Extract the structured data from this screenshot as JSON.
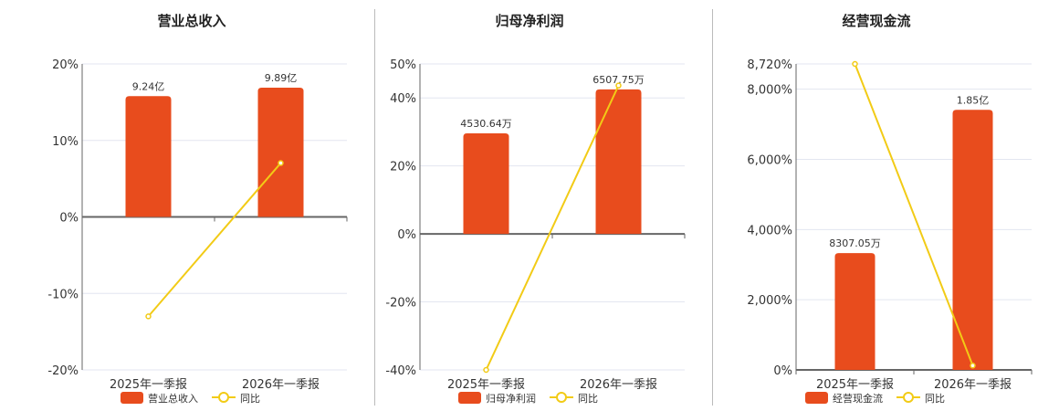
{
  "colors": {
    "bar": "#E84C1D",
    "line": "#F2CB16",
    "grid": "#e3e6f0",
    "axis": "#666"
  },
  "chart_data": [
    {
      "type": "bar+line",
      "title": "营业总收入",
      "categories": [
        "2025年一季报",
        "2026年一季报"
      ],
      "bar_series": {
        "name": "营业总收入",
        "values": [
          9.24,
          9.89
        ],
        "unit": "亿",
        "labels": [
          "9.24亿",
          "9.89亿"
        ]
      },
      "line_series": {
        "name": "同比",
        "values": [
          -13.0,
          7.04
        ],
        "unit": "%"
      },
      "ylim": [
        -20,
        20
      ],
      "yticks": [
        20,
        10,
        0,
        -10,
        -20
      ],
      "ytick_labels": [
        "20%",
        "10%",
        "0%",
        "-10%",
        "-20%"
      ],
      "grid": true,
      "legend": "bottom"
    },
    {
      "type": "bar+line",
      "title": "归母净利润",
      "categories": [
        "2025年一季报",
        "2026年一季报"
      ],
      "bar_series": {
        "name": "归母净利润",
        "values": [
          4530.64,
          6507.75
        ],
        "unit": "万",
        "labels": [
          "4530.64万",
          "6507.75万"
        ]
      },
      "line_series": {
        "name": "同比",
        "values": [
          -40,
          43.64
        ],
        "unit": "%"
      },
      "ylim": [
        -40,
        50
      ],
      "yticks": [
        50,
        40,
        20,
        0,
        -20,
        -40
      ],
      "ytick_labels": [
        "50%",
        "40%",
        "20%",
        "0%",
        "-20%",
        "-40%"
      ],
      "grid": true,
      "legend": "bottom"
    },
    {
      "type": "bar+line",
      "title": "经营现金流",
      "categories": [
        "2025年一季报",
        "2026年一季报"
      ],
      "bar_series": {
        "name": "经营现金流",
        "values": [
          8307.05,
          18500
        ],
        "unit": "万",
        "labels": [
          "8307.05万",
          "1.85亿"
        ]
      },
      "line_series": {
        "name": "同比",
        "values": [
          8720,
          122.7
        ],
        "unit": "%"
      },
      "ylim": [
        0,
        8720
      ],
      "yticks": [
        8720,
        8000,
        6000,
        4000,
        2000,
        0
      ],
      "ytick_labels": [
        "8,720%",
        "8,000%",
        "6,000%",
        "4,000%",
        "2,000%",
        "0%"
      ],
      "grid": true,
      "legend": "bottom"
    }
  ]
}
